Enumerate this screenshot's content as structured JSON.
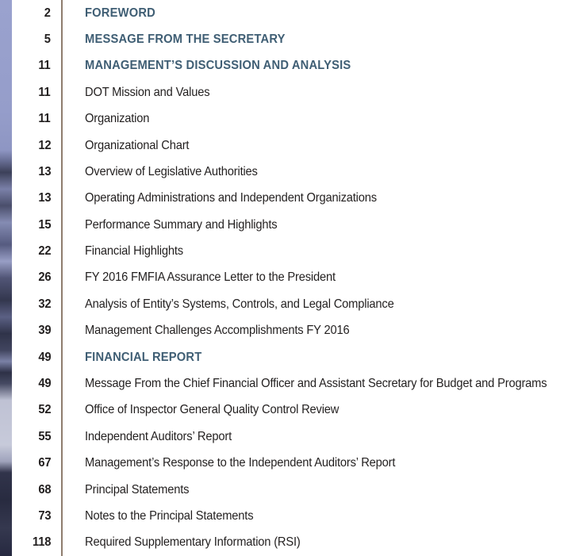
{
  "page": {
    "kind": "report-table-of-contents",
    "colors": {
      "section_heading": "#3F5E74",
      "body_text": "#221F1F",
      "divider": "#8F7D6E",
      "background": "#FFFFFF"
    }
  },
  "toc": {
    "entries": [
      {
        "page": "2",
        "title": "FOREWORD",
        "style": "section"
      },
      {
        "page": "5",
        "title": "MESSAGE FROM THE SECRETARY",
        "style": "section"
      },
      {
        "page": "11",
        "title": "MANAGEMENT’S DISCUSSION AND ANALYSIS",
        "style": "section"
      },
      {
        "page": "11",
        "title": "DOT Mission and Values",
        "style": "normal"
      },
      {
        "page": "11",
        "title": "Organization",
        "style": "normal"
      },
      {
        "page": "12",
        "title": "Organizational Chart",
        "style": "normal"
      },
      {
        "page": "13",
        "title": "Overview of Legislative Authorities",
        "style": "normal"
      },
      {
        "page": "13",
        "title": "Operating Administrations and Independent Organizations",
        "style": "normal"
      },
      {
        "page": "15",
        "title": "Performance Summary and Highlights",
        "style": "normal"
      },
      {
        "page": "22",
        "title": "Financial Highlights",
        "style": "normal"
      },
      {
        "page": "26",
        "title": "FY 2016 FMFIA Assurance Letter to the President",
        "style": "normal"
      },
      {
        "page": "32",
        "title": "Analysis of Entity’s Systems, Controls, and Legal Compliance",
        "style": "normal"
      },
      {
        "page": "39",
        "title": "Management Challenges Accomplishments FY 2016",
        "style": "normal"
      },
      {
        "page": "49",
        "title": "FINANCIAL REPORT",
        "style": "section"
      },
      {
        "page": "49",
        "title": "Message From the Chief Financial Officer and Assistant Secretary for Budget and Programs",
        "style": "normal"
      },
      {
        "page": "52",
        "title": "Office of Inspector General Quality Control Review",
        "style": "normal"
      },
      {
        "page": "55",
        "title": "Independent Auditors’ Report",
        "style": "normal"
      },
      {
        "page": "67",
        "title": "Management’s Response to the Independent Auditors’ Report",
        "style": "normal"
      },
      {
        "page": "68",
        "title": "Principal Statements",
        "style": "normal"
      },
      {
        "page": "73",
        "title": "Notes to the Principal Statements",
        "style": "normal"
      },
      {
        "page": "118",
        "title": "Required Supplementary Information (RSI)",
        "style": "normal"
      }
    ]
  }
}
